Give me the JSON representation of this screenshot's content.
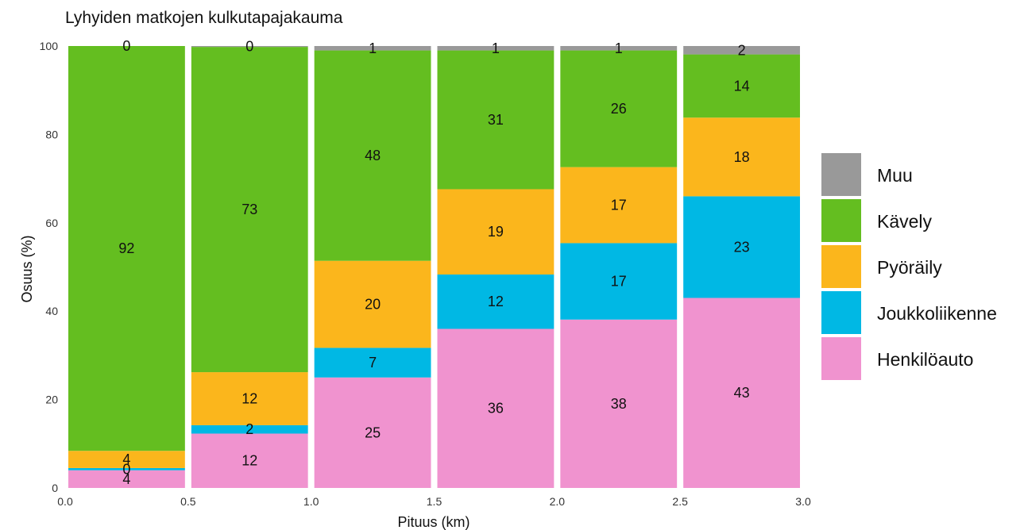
{
  "chart_data": {
    "type": "bar",
    "stacked": true,
    "title": "Lyhyiden matkojen kulkutapajakauma",
    "xlabel": "Pituus (km)",
    "ylabel": "Osuus (%)",
    "xlim": [
      0.0,
      3.0
    ],
    "ylim": [
      0,
      100
    ],
    "x_ticks": [
      "0.0",
      "0.5",
      "1.0",
      "1.5",
      "2.0",
      "2.5",
      "3.0"
    ],
    "y_ticks": [
      "0",
      "20",
      "40",
      "60",
      "80",
      "100"
    ],
    "bins": [
      [
        0.0,
        0.5
      ],
      [
        0.5,
        1.0
      ],
      [
        1.0,
        1.5
      ],
      [
        1.5,
        2.0
      ],
      [
        2.0,
        2.5
      ],
      [
        2.5,
        3.0
      ]
    ],
    "series": [
      {
        "name": "Henkilöauto",
        "color": "#F093CF",
        "values": [
          4,
          12,
          25,
          36,
          38,
          43
        ]
      },
      {
        "name": "Joukkoliikenne",
        "color": "#00B8E4",
        "values": [
          0,
          2,
          7,
          12,
          17,
          23
        ]
      },
      {
        "name": "Pyöräily",
        "color": "#FBB61C",
        "values": [
          4,
          12,
          20,
          19,
          17,
          18
        ]
      },
      {
        "name": "Kävely",
        "color": "#64BE20",
        "values": [
          92,
          73,
          48,
          31,
          26,
          14
        ]
      },
      {
        "name": "Muu",
        "color": "#999999",
        "values": [
          0,
          0,
          1,
          1,
          1,
          2
        ]
      }
    ],
    "plot_values": [
      [
        4.0,
        12.3,
        25.0,
        36.0,
        38.1,
        43.0
      ],
      [
        0.5,
        1.9,
        6.7,
        12.3,
        17.3,
        23.0
      ],
      [
        3.9,
        12.0,
        19.7,
        19.3,
        17.2,
        17.8
      ],
      [
        91.6,
        73.6,
        47.6,
        31.4,
        26.4,
        14.3
      ],
      [
        0.0,
        0.2,
        1.0,
        1.0,
        1.0,
        1.9
      ]
    ],
    "legend": {
      "position": "right",
      "order": [
        "Muu",
        "Kävely",
        "Pyöräily",
        "Joukkoliikenne",
        "Henkilöauto"
      ]
    },
    "grid": false
  }
}
